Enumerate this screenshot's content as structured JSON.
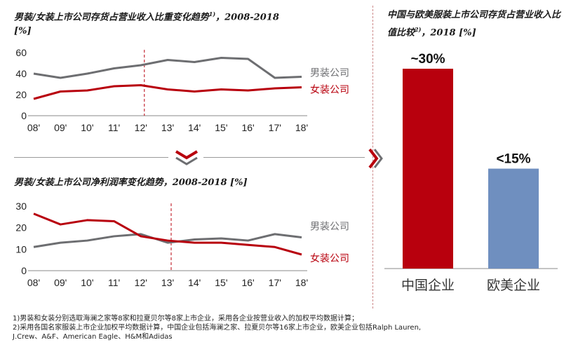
{
  "chart_data": [
    {
      "type": "line",
      "title": "男装/女装上市公司存货占营业收入比重变化趋势",
      "title_sup": "1)",
      "title_tail": "，2008-2018",
      "unit": "[%]",
      "categories": [
        "08'",
        "09'",
        "10'",
        "11'",
        "12'",
        "13'",
        "14'",
        "15'",
        "16'",
        "17'",
        "18'"
      ],
      "y_ticks": [
        "0",
        "20",
        "40",
        "60"
      ],
      "ylim": [
        0,
        60
      ],
      "grid": false,
      "legend": "right",
      "marker_after": "12'",
      "series": [
        {
          "name": "男装公司",
          "color": "#6d6e71",
          "values": [
            40,
            36,
            40,
            45,
            48,
            53,
            51,
            55,
            54,
            36,
            37
          ]
        },
        {
          "name": "女装公司",
          "color": "#b8000d",
          "values": [
            16,
            23,
            24,
            28,
            29,
            25,
            23,
            25,
            24,
            26,
            27
          ]
        }
      ]
    },
    {
      "type": "line",
      "title": "男装/女装上市公司净利润率变化趋势，2008-2018 [%]",
      "categories": [
        "08'",
        "09'",
        "10'",
        "11'",
        "12'",
        "13'",
        "14'",
        "15'",
        "16'",
        "17'",
        "18'"
      ],
      "y_ticks": [
        "0",
        "10",
        "20",
        "30"
      ],
      "ylim": [
        0,
        30
      ],
      "grid": false,
      "legend": "right",
      "marker_after": "13'",
      "series": [
        {
          "name": "男装公司",
          "color": "#6d6e71",
          "values": [
            11,
            13,
            14,
            16,
            17,
            13,
            14.5,
            15,
            14,
            17,
            15.5
          ]
        },
        {
          "name": "女装公司",
          "color": "#b8000d",
          "values": [
            26.5,
            21.5,
            23.5,
            23,
            16,
            14,
            13,
            13,
            12,
            11,
            7.5
          ]
        }
      ]
    },
    {
      "type": "bar",
      "title": "中国与欧美服装上市公司存货占营业收入比值比较",
      "title_sup": "2)",
      "title_tail": "，2018 [%]",
      "categories": [
        "中国企业",
        "欧美企业"
      ],
      "values": [
        30,
        15
      ],
      "data_labels": [
        "~30%",
        "<15%"
      ],
      "colors": [
        "#b8000d",
        "#6f8fbf"
      ],
      "ylim": [
        0,
        30
      ]
    }
  ],
  "footnotes": [
    "1)男装和女装分别选取海澜之家等8家和拉夏贝尔等8家上市企业，采用各企业按营业收入的加权平均数据计算；",
    "2)采用各国名家服装上市企业加权平均数据计算，中国企业包括海澜之家、拉夏贝尔等16家上市企业，欧美企业包括Ralph Lauren,",
    "J.Crew、A&F、American Eagle、H&M和Adidas"
  ]
}
